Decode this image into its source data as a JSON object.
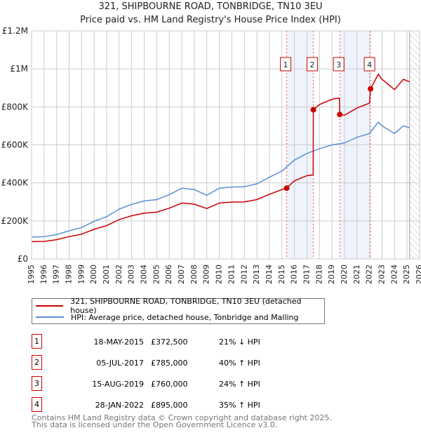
{
  "chart_data": {
    "type": "line",
    "title": "321, SHIPBOURNE ROAD, TONBRIDGE, TN10 3EU",
    "subtitle": "Price paid vs. HM Land Registry's House Price Index (HPI)",
    "xlim": [
      1995,
      2026
    ],
    "ylim": [
      0,
      1200000
    ],
    "x_ticks": [
      "1995",
      "1996",
      "1997",
      "1998",
      "1999",
      "2000",
      "2001",
      "2002",
      "2003",
      "2004",
      "2005",
      "2006",
      "2007",
      "2008",
      "2009",
      "2010",
      "2011",
      "2012",
      "2013",
      "2014",
      "2015",
      "2016",
      "2017",
      "2018",
      "2019",
      "2020",
      "2021",
      "2022",
      "2023",
      "2024",
      "2025",
      "2026"
    ],
    "y_ticks": [
      {
        "v": 0,
        "label": "£0"
      },
      {
        "v": 200000,
        "label": "£200K"
      },
      {
        "v": 400000,
        "label": "£400K"
      },
      {
        "v": 600000,
        "label": "£600K"
      },
      {
        "v": 800000,
        "label": "£800K"
      },
      {
        "v": 1000000,
        "label": "£1M"
      },
      {
        "v": 1200000,
        "label": "£1.2M"
      }
    ],
    "grid": true,
    "future_hatch_from": 2025.2,
    "series": [
      {
        "name": "321, SHIPBOURNE ROAD, TONBRIDGE, TN10 3EU (detached house)",
        "color": "#cc0000",
        "x": [
          1995,
          1996,
          1997,
          1998,
          1999,
          2000,
          2001,
          2002,
          2003,
          2004,
          2005,
          2006,
          2007,
          2008,
          2009,
          2010,
          2011,
          2012,
          2013,
          2014,
          2015,
          2015.38,
          2016,
          2017,
          2017.5,
          2017.51,
          2018,
          2019,
          2019.6,
          2019.62,
          2020,
          2021,
          2022,
          2022.08,
          2022.7,
          2023,
          2024,
          2024.7,
          2025.2
        ],
        "y": [
          91000,
          92000,
          101000,
          117000,
          130000,
          156000,
          175000,
          207000,
          227000,
          241000,
          246000,
          267000,
          294000,
          288000,
          265000,
          294000,
          299000,
          300000,
          312000,
          340000,
          365000,
          372500,
          411000,
          438000,
          442000,
          785000,
          812000,
          840000,
          847000,
          760000,
          756000,
          794000,
          820000,
          895000,
          972000,
          945000,
          891000,
          945000,
          932000
        ]
      },
      {
        "name": "HPI: Average price, detached house, Tonbridge and Malling",
        "color": "#5b8fd6",
        "x": [
          1995,
          1996,
          1997,
          1998,
          1999,
          2000,
          2001,
          2002,
          2003,
          2004,
          2005,
          2006,
          2007,
          2008,
          2009,
          2010,
          2011,
          2012,
          2013,
          2014,
          2015,
          2016,
          2017,
          2018,
          2019,
          2020,
          2021,
          2022,
          2022.7,
          2023,
          2024,
          2024.7,
          2025.2
        ],
        "y": [
          115000,
          117000,
          128000,
          148000,
          165000,
          198000,
          222000,
          262000,
          287000,
          305000,
          312000,
          338000,
          372000,
          365000,
          335000,
          372000,
          378000,
          380000,
          395000,
          430000,
          462000,
          520000,
          555000,
          580000,
          600000,
          610000,
          640000,
          660000,
          720000,
          700000,
          660000,
          700000,
          690000
        ]
      }
    ],
    "sales": [
      {
        "n": "1",
        "x": 2015.38,
        "date": "18-MAY-2015",
        "price": 372500,
        "price_label": "£372,500",
        "hpi": "21% ↓ HPI"
      },
      {
        "n": "2",
        "x": 2017.51,
        "date": "05-JUL-2017",
        "price": 785000,
        "price_label": "£785,000",
        "hpi": "40% ↑ HPI"
      },
      {
        "n": "3",
        "x": 2019.62,
        "date": "15-AUG-2019",
        "price": 760000,
        "price_label": "£760,000",
        "hpi": "24% ↑ HPI"
      },
      {
        "n": "4",
        "x": 2022.08,
        "date": "28-JAN-2022",
        "price": 895000,
        "price_label": "£895,000",
        "hpi": "35% ↑ HPI"
      }
    ],
    "shaded_ranges": [
      [
        2015.38,
        2017.51
      ],
      [
        2019.62,
        2022.08
      ]
    ]
  },
  "footer": [
    "Contains HM Land Registry data © Crown copyright and database right 2025.",
    "This data is licensed under the Open Government Licence v3.0."
  ]
}
